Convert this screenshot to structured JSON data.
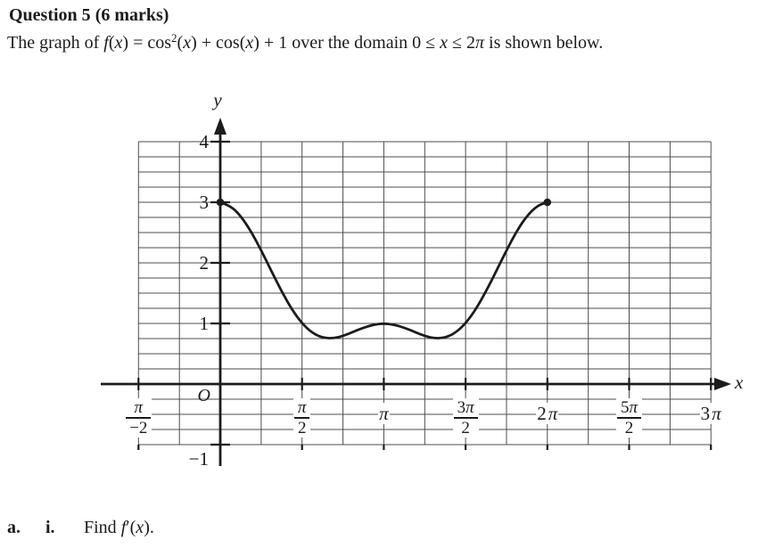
{
  "page": {
    "background": "#ffffff",
    "text_color": "#1b1b1b"
  },
  "question": {
    "number_label": "Question 5",
    "marks_label": " (6 marks)",
    "intro_runs": [
      {
        "t": "The graph of ",
        "s": "r"
      },
      {
        "t": "f",
        "s": "i"
      },
      {
        "t": "(",
        "s": "r"
      },
      {
        "t": "x",
        "s": "i"
      },
      {
        "t": ") = cos",
        "s": "r"
      },
      {
        "t": "2",
        "s": "sup"
      },
      {
        "t": "(",
        "s": "r"
      },
      {
        "t": "x",
        "s": "i"
      },
      {
        "t": ") + cos(",
        "s": "r"
      },
      {
        "t": "x",
        "s": "i"
      },
      {
        "t": ") + 1 over the domain 0 ≤ ",
        "s": "r"
      },
      {
        "t": "x",
        "s": "i"
      },
      {
        "t": " ≤ 2",
        "s": "r"
      },
      {
        "t": "π",
        "s": "i"
      },
      {
        "t": " is shown below.",
        "s": "r"
      }
    ],
    "part_label": "a.",
    "subpart_label": "i.",
    "prompt_runs": [
      {
        "t": "Find ",
        "s": "r"
      },
      {
        "t": "f",
        "s": "i"
      },
      {
        "t": "′(",
        "s": "r"
      },
      {
        "t": "x",
        "s": "i"
      },
      {
        "t": ").",
        "s": "r"
      }
    ]
  },
  "chart_data": {
    "type": "line",
    "function": "f(x) = cos²(x) + cos(x) + 1",
    "domain": "0 ≤ x ≤ 2π",
    "xlabel": "x",
    "ylabel": "y",
    "origin_label": "O",
    "axis_color": "#1c1c1c",
    "grid_color": "#4d4d4d",
    "grid": {
      "x_min_pi": -0.5,
      "x_max_pi": 3,
      "x_step_pi": 0.25,
      "y_min": -1,
      "y_max": 4,
      "y_step": 0.25
    },
    "x_ticks": [
      {
        "x_pi": -0.5,
        "frac": {
          "num": "π",
          "den": "−2"
        }
      },
      {
        "x_pi": 0.5,
        "frac": {
          "num": "π",
          "den": "2"
        }
      },
      {
        "x_pi": 1,
        "text": "π"
      },
      {
        "x_pi": 1.5,
        "frac": {
          "num": "3π",
          "den": "2"
        }
      },
      {
        "x_pi": 2,
        "text": "2π"
      },
      {
        "x_pi": 2.5,
        "frac": {
          "num": "5π",
          "den": "2"
        }
      },
      {
        "x_pi": 3,
        "text": "3π"
      }
    ],
    "y_ticks": [
      {
        "y": 4,
        "label": "4"
      },
      {
        "y": 3,
        "label": "3"
      },
      {
        "y": 2,
        "label": "2"
      },
      {
        "y": 1,
        "label": "1"
      },
      {
        "y": -1,
        "label": "−1",
        "label_dy": 16
      }
    ],
    "key_points": {
      "endpoints": [
        [
          0,
          3
        ],
        [
          6.2832,
          3
        ]
      ],
      "local_max": [
        [
          3.1416,
          1
        ]
      ],
      "local_min": [
        [
          2.0944,
          0.75
        ],
        [
          4.1888,
          0.75
        ]
      ]
    },
    "series": [
      {
        "name": "f(x) = cos²(x) + cos(x) + 1",
        "color": "#1c1c1c",
        "x_pi": [
          0,
          0.0625,
          0.125,
          0.1875,
          0.25,
          0.3125,
          0.375,
          0.4375,
          0.5,
          0.5625,
          0.625,
          0.6875,
          0.75,
          0.8125,
          0.875,
          0.9375,
          1,
          1.0625,
          1.125,
          1.1875,
          1.25,
          1.3125,
          1.375,
          1.4375,
          1.5,
          1.5625,
          1.625,
          1.6875,
          1.75,
          1.8125,
          1.875,
          1.9375,
          2
        ],
        "y": [
          3,
          2.943,
          2.777,
          2.523,
          2.207,
          1.864,
          1.529,
          1.233,
          1,
          0.843,
          0.764,
          0.753,
          0.793,
          0.86,
          0.93,
          0.981,
          1,
          0.981,
          0.93,
          0.86,
          0.793,
          0.753,
          0.764,
          0.843,
          1,
          1.233,
          1.529,
          1.864,
          2.207,
          2.523,
          2.777,
          2.943,
          3
        ]
      }
    ],
    "endpoint_dots": [
      {
        "x_pi": 0,
        "y": 3
      },
      {
        "x_pi": 2,
        "y": 3
      }
    ]
  }
}
